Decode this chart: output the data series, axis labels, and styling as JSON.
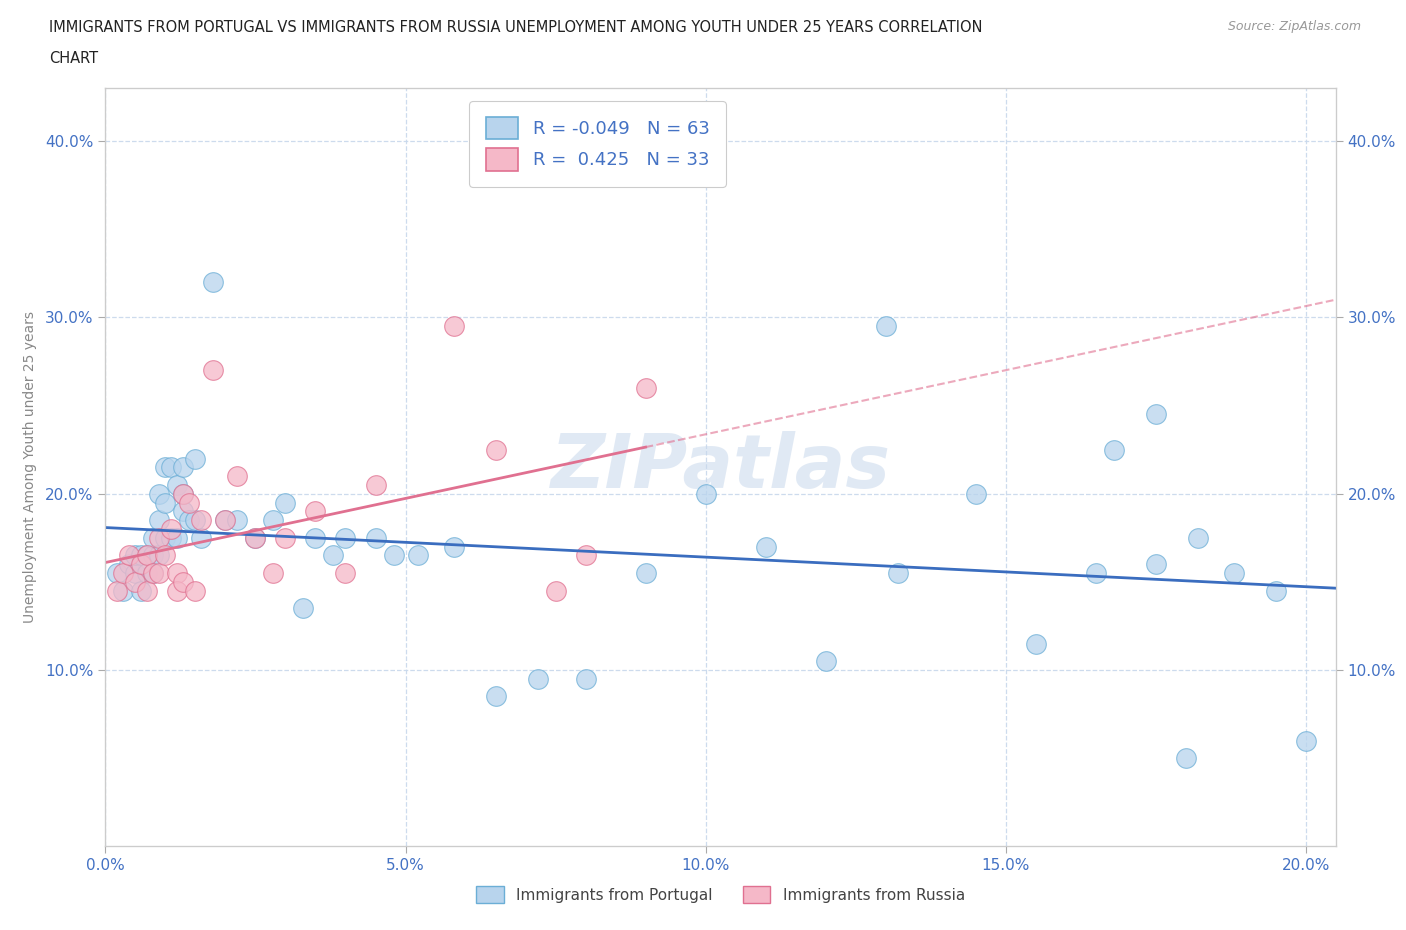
{
  "title_line1": "IMMIGRANTS FROM PORTUGAL VS IMMIGRANTS FROM RUSSIA UNEMPLOYMENT AMONG YOUTH UNDER 25 YEARS CORRELATION",
  "title_line2": "CHART",
  "source_text": "Source: ZipAtlas.com",
  "ylabel": "Unemployment Among Youth under 25 years",
  "xlim": [
    0.0,
    0.205
  ],
  "ylim": [
    0.0,
    0.43
  ],
  "xticks": [
    0.0,
    0.05,
    0.1,
    0.15,
    0.2
  ],
  "yticks": [
    0.1,
    0.2,
    0.3,
    0.4
  ],
  "ytick_labels": [
    "10.0%",
    "20.0%",
    "30.0%",
    "40.0%"
  ],
  "xtick_labels": [
    "0.0%",
    "5.0%",
    "10.0%",
    "15.0%",
    "20.0%"
  ],
  "legend_R1": "-0.049",
  "legend_N1": "63",
  "legend_R2": "0.425",
  "legend_N2": "33",
  "color_portugal_face": "#b8d4ed",
  "color_portugal_edge": "#6baed6",
  "color_russia_face": "#f5b8c8",
  "color_russia_edge": "#e07090",
  "color_trend_portugal": "#3a6dbf",
  "color_trend_russia": "#e07090",
  "watermark": "ZIPatlas",
  "portugal_x": [
    0.002,
    0.003,
    0.004,
    0.005,
    0.005,
    0.006,
    0.006,
    0.007,
    0.007,
    0.008,
    0.008,
    0.008,
    0.009,
    0.009,
    0.009,
    0.01,
    0.01,
    0.01,
    0.011,
    0.011,
    0.012,
    0.012,
    0.013,
    0.013,
    0.013,
    0.014,
    0.015,
    0.015,
    0.016,
    0.018,
    0.02,
    0.022,
    0.025,
    0.028,
    0.03,
    0.033,
    0.035,
    0.038,
    0.04,
    0.045,
    0.048,
    0.052,
    0.058,
    0.065,
    0.072,
    0.08,
    0.09,
    0.1,
    0.11,
    0.12,
    0.132,
    0.145,
    0.155,
    0.165,
    0.175,
    0.182,
    0.188,
    0.195,
    0.2,
    0.175,
    0.168,
    0.13,
    0.18
  ],
  "portugal_y": [
    0.155,
    0.145,
    0.16,
    0.155,
    0.165,
    0.145,
    0.165,
    0.165,
    0.155,
    0.165,
    0.175,
    0.155,
    0.165,
    0.185,
    0.2,
    0.175,
    0.195,
    0.215,
    0.175,
    0.215,
    0.175,
    0.205,
    0.19,
    0.215,
    0.2,
    0.185,
    0.22,
    0.185,
    0.175,
    0.32,
    0.185,
    0.185,
    0.175,
    0.185,
    0.195,
    0.135,
    0.175,
    0.165,
    0.175,
    0.175,
    0.165,
    0.165,
    0.17,
    0.085,
    0.095,
    0.095,
    0.155,
    0.2,
    0.17,
    0.105,
    0.155,
    0.2,
    0.115,
    0.155,
    0.16,
    0.175,
    0.155,
    0.145,
    0.06,
    0.245,
    0.225,
    0.295,
    0.05
  ],
  "russia_x": [
    0.002,
    0.003,
    0.004,
    0.005,
    0.006,
    0.007,
    0.007,
    0.008,
    0.009,
    0.009,
    0.01,
    0.011,
    0.012,
    0.012,
    0.013,
    0.013,
    0.014,
    0.015,
    0.016,
    0.018,
    0.02,
    0.022,
    0.025,
    0.028,
    0.03,
    0.035,
    0.04,
    0.045,
    0.058,
    0.065,
    0.075,
    0.08,
    0.09
  ],
  "russia_y": [
    0.145,
    0.155,
    0.165,
    0.15,
    0.16,
    0.165,
    0.145,
    0.155,
    0.175,
    0.155,
    0.165,
    0.18,
    0.155,
    0.145,
    0.2,
    0.15,
    0.195,
    0.145,
    0.185,
    0.27,
    0.185,
    0.21,
    0.175,
    0.155,
    0.175,
    0.19,
    0.155,
    0.205,
    0.295,
    0.225,
    0.145,
    0.165,
    0.26
  ]
}
